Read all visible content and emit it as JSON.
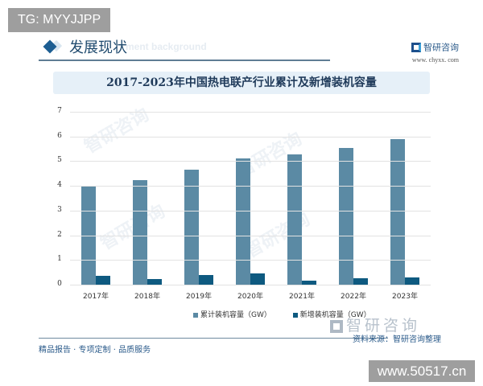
{
  "badges": {
    "top_left": "TG: MYYJJPP",
    "bottom_right": "www.50517.cn"
  },
  "section": {
    "title": "发展现状",
    "subtitle_faded": "ment background"
  },
  "brand": {
    "name": "智研咨询",
    "url": "www. chyxx. com"
  },
  "chart_title": "2017-2023年中国热电联产行业累计及新增装机容量",
  "footer": {
    "left_text": "精品报告 · 专项定制 · 品质服务",
    "brand_big": "智研咨询",
    "source": "资料来源：智研咨询整理"
  },
  "colors": {
    "cumulative": "#5b8aa4",
    "new": "#0e5a80",
    "title_bg": "#e6f0f8",
    "accent": "#1d5e92"
  },
  "chart_data": {
    "type": "bar",
    "title": "2017-2023年中国热电联产行业累计及新增装机容量",
    "xlabel": "",
    "ylabel": "",
    "ylim": [
      0,
      7
    ],
    "yticks": [
      "0",
      "1",
      "2",
      "3",
      "4",
      "5",
      "6",
      "7"
    ],
    "grid": true,
    "legend_position": "bottom",
    "categories": [
      "2017年",
      "2018年",
      "2019年",
      "2020年",
      "2021年",
      "2022年",
      "2023年"
    ],
    "series": [
      {
        "name": "累计装机容量（GW）",
        "values": [
          4.0,
          4.23,
          4.65,
          5.1,
          5.27,
          5.55,
          5.88
        ]
      },
      {
        "name": "新增装机容量（GW）",
        "values": [
          0.37,
          0.23,
          0.4,
          0.45,
          0.17,
          0.25,
          0.3
        ]
      }
    ]
  }
}
